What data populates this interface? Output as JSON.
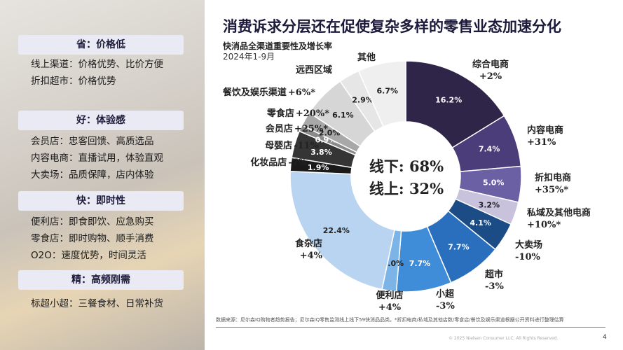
{
  "left_panel": {
    "sections": [
      {
        "header": "省：价格低",
        "lines": [
          "线上渠道：价格优势、比价方便",
          "折扣超市：价格优势"
        ]
      },
      {
        "header": "好：体验感",
        "lines": [
          "会员店：忠客回馈、高质选品",
          "内容电商：直播试用，体验直观",
          "大卖场：品质保障，店内体验"
        ]
      },
      {
        "header": "快：即时性",
        "lines": [
          "便利店：即食即饮、应急购买",
          "零食店：即时购物、顺手消费",
          "O2O：速度优势，时间灵活"
        ]
      },
      {
        "header": "精：高频刚需",
        "lines": [
          "标超小超：三餐食材、日常补货"
        ]
      }
    ]
  },
  "chart_data": {
    "type": "donut",
    "title": "消费诉求分层还在促使复杂多样的零售业态加速分化",
    "subtitle": "快消品全渠道重要性及增长率",
    "period": "2024年1-9月",
    "center_labels": [
      "线下: 68%",
      "线上: 32%"
    ],
    "slices": [
      {
        "name": "综合电商",
        "growth": "+2%",
        "value": 16.2,
        "label": "16.2%",
        "color": "#2e2548"
      },
      {
        "name": "内容电商",
        "growth": "+31%",
        "value": 7.4,
        "label": "7.4%",
        "color": "#4a3d7a"
      },
      {
        "name": "折扣电商",
        "growth": "+35%*",
        "value": 5.0,
        "label": "5.0%",
        "color": "#6b60a3"
      },
      {
        "name": "私域及其他电商",
        "growth": "+10%*",
        "value": 3.2,
        "label": "3.2%",
        "color": "#c8c2dd"
      },
      {
        "name": "大卖场",
        "growth": "-10%",
        "value": 4.1,
        "label": "4.1%",
        "color": "#1b4c86"
      },
      {
        "name": "超市",
        "growth": "-3%",
        "value": 7.7,
        "label": "7.7%",
        "color": "#2a6fbd"
      },
      {
        "name": "小超",
        "growth": "-3%",
        "value": 7.7,
        "label": "7.7%",
        "color": "#3f8dd8"
      },
      {
        "name": "便利店",
        "growth": "+4%",
        "value": 2.0,
        "label": "2.0%",
        "color": "#7db4e7"
      },
      {
        "name": "食杂店",
        "growth": "+4%",
        "value": 22.4,
        "label": "22.4%",
        "color": "#b8d4f0"
      },
      {
        "name": "化妆品店",
        "growth": "-7%",
        "value": 1.9,
        "label": "1.9%",
        "color": "#1a1a1a"
      },
      {
        "name": "母婴店",
        "growth": "-11%",
        "value": 3.8,
        "label": "3.8%",
        "color": "#353535"
      },
      {
        "name": "会员店",
        "growth": "+25%*",
        "value": 0.9,
        "label": "0.9%",
        "color": "#8a8a8a"
      },
      {
        "name": "零食店",
        "growth": "+20%*",
        "value": 2.0,
        "label": "2.0%",
        "color": "#a8a8a8"
      },
      {
        "name": "餐饮及娱乐渠道",
        "growth": "+6%*",
        "value": 6.1,
        "label": "6.1%",
        "color": "#d6d6d6"
      },
      {
        "name": "远西区域",
        "growth": "",
        "value": 2.9,
        "label": "2.9%",
        "color": "#e6e6e6"
      },
      {
        "name": "其他",
        "growth": "",
        "value": 6.7,
        "label": "6.7%",
        "color": "#efefef"
      }
    ]
  },
  "footer": {
    "note": "数据来源：尼尔森IQ购物者趋势报告；尼尔森IQ零售监测线上线下59快消品品类。*折扣电商/私域及其他店数/零食店/餐饮及娱乐渠道根据公开资料进行整理估算",
    "copyright": "© 2025 Nielsen Consumer LLC. All Rights Reserved.",
    "page": "4"
  }
}
